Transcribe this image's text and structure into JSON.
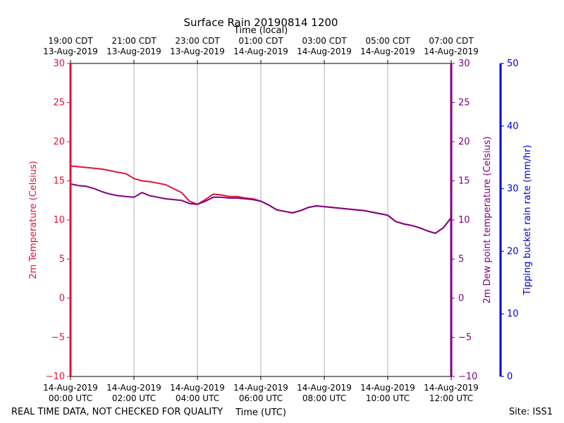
{
  "title": "Surface Rain 20190814 1200",
  "footer_left": "REAL TIME DATA, NOT CHECKED FOR QUALITY",
  "footer_right": "Site: ISS1",
  "colors": {
    "temperature": "#dc143c",
    "dewpoint": "#800080",
    "rain": "#0000cd",
    "grid": "#b0b0b0",
    "text": "#000000"
  },
  "chart_data": {
    "type": "line",
    "title": "Surface Rain 20190814 1200",
    "top_axis": {
      "label": "Time (local)",
      "ticks": [
        {
          "x": 0,
          "line1": "19:00 CDT",
          "line2": "13-Aug-2019"
        },
        {
          "x": 2,
          "line1": "21:00 CDT",
          "line2": "13-Aug-2019"
        },
        {
          "x": 4,
          "line1": "23:00 CDT",
          "line2": "13-Aug-2019"
        },
        {
          "x": 6,
          "line1": "01:00 CDT",
          "line2": "14-Aug-2019"
        },
        {
          "x": 8,
          "line1": "03:00 CDT",
          "line2": "14-Aug-2019"
        },
        {
          "x": 10,
          "line1": "05:00 CDT",
          "line2": "14-Aug-2019"
        },
        {
          "x": 12,
          "line1": "07:00 CDT",
          "line2": "14-Aug-2019"
        }
      ]
    },
    "bottom_axis": {
      "label": "Time (UTC)",
      "xlim": [
        0,
        12
      ],
      "ticks": [
        {
          "x": 0,
          "line1": "14-Aug-2019",
          "line2": "00:00 UTC"
        },
        {
          "x": 2,
          "line1": "14-Aug-2019",
          "line2": "02:00 UTC"
        },
        {
          "x": 4,
          "line1": "14-Aug-2019",
          "line2": "04:00 UTC"
        },
        {
          "x": 6,
          "line1": "14-Aug-2019",
          "line2": "06:00 UTC"
        },
        {
          "x": 8,
          "line1": "14-Aug-2019",
          "line2": "08:00 UTC"
        },
        {
          "x": 10,
          "line1": "14-Aug-2019",
          "line2": "10:00 UTC"
        },
        {
          "x": 12,
          "line1": "14-Aug-2019",
          "line2": "12:00 UTC"
        }
      ]
    },
    "left_axis": {
      "label": "2m Temperature (Celsius)",
      "ylim": [
        -10,
        30
      ],
      "ticks": [
        30,
        25,
        20,
        15,
        10,
        5,
        0,
        -5,
        -10
      ],
      "tick_labels": [
        "30",
        "25",
        "20",
        "15",
        "10",
        "5",
        "0",
        "−5",
        "−10"
      ]
    },
    "right_axis_1": {
      "label": "2m Dew point temperature (Celsius)",
      "ylim": [
        -10,
        30
      ],
      "ticks": [
        30,
        25,
        20,
        15,
        10,
        5,
        0,
        -5,
        -10
      ],
      "tick_labels": [
        "30",
        "25",
        "20",
        "15",
        "10",
        "5",
        "0",
        "−5",
        "−10"
      ]
    },
    "right_axis_2": {
      "label": "Tipping bucket rain rate (mm/hr)",
      "ylim": [
        0,
        50
      ],
      "ticks": [
        50,
        40,
        30,
        20,
        10,
        0
      ],
      "tick_labels": [
        "50",
        "40",
        "30",
        "20",
        "10",
        "0"
      ]
    },
    "grid": "vertical",
    "series": [
      {
        "key": "temperature",
        "x": [
          0,
          0.25,
          0.5,
          0.75,
          1,
          1.25,
          1.5,
          1.75,
          2,
          2.25,
          2.5,
          2.75,
          3,
          3.25,
          3.5,
          3.75,
          4,
          4.25,
          4.5,
          4.75,
          5,
          5.25,
          5.5,
          5.75,
          6,
          6.25,
          6.5,
          6.75,
          7,
          7.25,
          7.5,
          7.75,
          8,
          8.25,
          8.5,
          8.75,
          9,
          9.25,
          9.5,
          9.75,
          10,
          10.25,
          10.5,
          10.75,
          11,
          11.25,
          11.5,
          11.75,
          12
        ],
        "values": [
          16.9,
          16.8,
          16.7,
          16.6,
          16.5,
          16.3,
          16.1,
          15.9,
          15.3,
          15.0,
          14.9,
          14.7,
          14.5,
          14.0,
          13.5,
          12.4,
          12.0,
          12.6,
          13.3,
          13.2,
          13.0,
          13.0,
          12.8,
          12.7,
          12.4,
          11.9,
          11.3,
          11.1,
          10.9,
          11.2,
          11.6,
          11.8,
          11.7,
          11.6,
          11.5,
          11.4,
          11.3,
          11.2,
          11.0,
          10.8,
          10.6,
          9.8,
          9.5,
          9.3,
          9.0,
          8.6,
          8.3,
          9.0,
          10.3
        ]
      },
      {
        "key": "dewpoint",
        "x": [
          0,
          0.25,
          0.5,
          0.75,
          1,
          1.25,
          1.5,
          1.75,
          2,
          2.25,
          2.5,
          2.75,
          3,
          3.25,
          3.5,
          3.75,
          4,
          4.25,
          4.5,
          4.75,
          5,
          5.25,
          5.5,
          5.75,
          6,
          6.25,
          6.5,
          6.75,
          7,
          7.25,
          7.5,
          7.75,
          8,
          8.25,
          8.5,
          8.75,
          9,
          9.25,
          9.5,
          9.75,
          10,
          10.25,
          10.5,
          10.75,
          11,
          11.25,
          11.5,
          11.75,
          12
        ],
        "values": [
          14.6,
          14.4,
          14.3,
          14.0,
          13.6,
          13.3,
          13.1,
          13.0,
          12.9,
          13.5,
          13.1,
          12.9,
          12.7,
          12.6,
          12.5,
          12.1,
          12.0,
          12.4,
          12.9,
          12.9,
          12.8,
          12.8,
          12.7,
          12.6,
          12.4,
          11.9,
          11.3,
          11.1,
          10.9,
          11.2,
          11.6,
          11.8,
          11.7,
          11.6,
          11.5,
          11.4,
          11.3,
          11.2,
          11.0,
          10.8,
          10.6,
          9.8,
          9.5,
          9.3,
          9.0,
          8.6,
          8.3,
          9.0,
          10.3
        ]
      }
    ]
  }
}
